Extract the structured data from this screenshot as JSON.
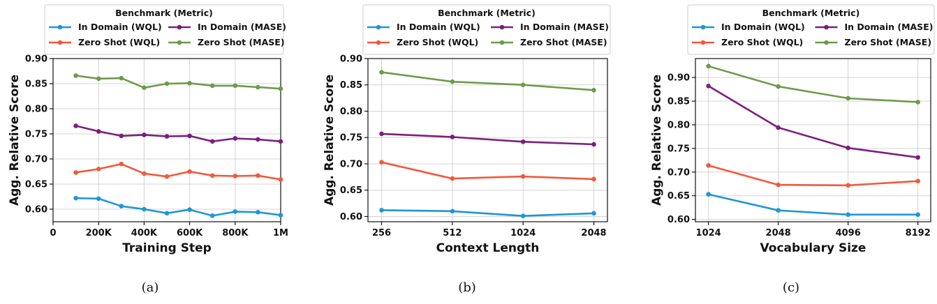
{
  "colors": {
    "in_domain_wql": "#1f96d4",
    "in_domain_mase": "#7b1f7e",
    "zero_shot_wql": "#f4583a",
    "zero_shot_mase": "#6e9a4c",
    "grid": "#d4d4d4"
  },
  "chart_data": [
    {
      "type": "line",
      "caption": "(a)",
      "xlabel": "Training Step",
      "ylabel": "Agg. Relative Score",
      "legend": {
        "title": "Benchmark (Metric)",
        "placement": "top"
      },
      "grid": true,
      "xlim": [
        0,
        1000000
      ],
      "ylim": [
        0.575,
        0.9
      ],
      "xticks": [
        0,
        200000,
        400000,
        600000,
        800000,
        1000000
      ],
      "xticklabels": [
        "0",
        "200K",
        "400K",
        "600K",
        "800K",
        "1M"
      ],
      "yticks": [
        0.6,
        0.65,
        0.7,
        0.75,
        0.8,
        0.85,
        0.9
      ],
      "yticklabels": [
        "0.60",
        "0.65",
        "0.70",
        "0.75",
        "0.80",
        "0.85",
        "0.90"
      ],
      "x": [
        100000,
        200000,
        300000,
        400000,
        500000,
        600000,
        700000,
        800000,
        900000,
        1000000
      ],
      "series": [
        {
          "name": "In Domain (WQL)",
          "color_key": "in_domain_wql",
          "values": [
            0.622,
            0.621,
            0.606,
            0.6,
            0.592,
            0.599,
            0.587,
            0.595,
            0.594,
            0.588
          ]
        },
        {
          "name": "In Domain (MASE)",
          "color_key": "in_domain_mase",
          "values": [
            0.766,
            0.755,
            0.746,
            0.748,
            0.745,
            0.746,
            0.735,
            0.741,
            0.739,
            0.735
          ]
        },
        {
          "name": "Zero Shot (WQL)",
          "color_key": "zero_shot_wql",
          "values": [
            0.673,
            0.68,
            0.69,
            0.671,
            0.665,
            0.675,
            0.667,
            0.666,
            0.667,
            0.659
          ]
        },
        {
          "name": "Zero Shot (MASE)",
          "color_key": "zero_shot_mase",
          "values": [
            0.866,
            0.86,
            0.861,
            0.842,
            0.85,
            0.851,
            0.846,
            0.846,
            0.843,
            0.84
          ]
        }
      ]
    },
    {
      "type": "line",
      "caption": "(b)",
      "xlabel": "Context Length",
      "ylabel": "Agg. Relative Score",
      "legend": {
        "title": "Benchmark (Metric)",
        "placement": "top"
      },
      "grid": true,
      "xscale": "log2",
      "xlim": [
        224,
        2340
      ],
      "ylim": [
        0.59,
        0.9
      ],
      "xticks": [
        256,
        512,
        1024,
        2048
      ],
      "xticklabels": [
        "256",
        "512",
        "1024",
        "2048"
      ],
      "yticks": [
        0.6,
        0.65,
        0.7,
        0.75,
        0.8,
        0.85,
        0.9
      ],
      "yticklabels": [
        "0.60",
        "0.65",
        "0.70",
        "0.75",
        "0.80",
        "0.85",
        "0.90"
      ],
      "x": [
        256,
        512,
        1024,
        2048
      ],
      "series": [
        {
          "name": "In Domain (WQL)",
          "color_key": "in_domain_wql",
          "values": [
            0.612,
            0.61,
            0.601,
            0.606
          ]
        },
        {
          "name": "In Domain (MASE)",
          "color_key": "in_domain_mase",
          "values": [
            0.757,
            0.751,
            0.742,
            0.737
          ]
        },
        {
          "name": "Zero Shot (WQL)",
          "color_key": "zero_shot_wql",
          "values": [
            0.703,
            0.672,
            0.676,
            0.671
          ]
        },
        {
          "name": "Zero Shot (MASE)",
          "color_key": "zero_shot_mase",
          "values": [
            0.874,
            0.856,
            0.85,
            0.84
          ]
        }
      ]
    },
    {
      "type": "line",
      "caption": "(c)",
      "xlabel": "Vocabulary Size",
      "ylabel": "Agg. Relative Score",
      "legend": {
        "title": "Benchmark (Metric)",
        "placement": "top"
      },
      "grid": true,
      "xscale": "log2",
      "xlim": [
        900,
        9300
      ],
      "ylim": [
        0.595,
        0.94
      ],
      "xticks": [
        1024,
        2048,
        4096,
        8192
      ],
      "xticklabels": [
        "1024",
        "2048",
        "4096",
        "8192"
      ],
      "yticks": [
        0.6,
        0.65,
        0.7,
        0.75,
        0.8,
        0.85,
        0.9
      ],
      "yticklabels": [
        "0.60",
        "0.65",
        "0.70",
        "0.75",
        "0.80",
        "0.85",
        "0.90"
      ],
      "x": [
        1024,
        2048,
        4096,
        8192
      ],
      "series": [
        {
          "name": "In Domain (WQL)",
          "color_key": "in_domain_wql",
          "values": [
            0.653,
            0.619,
            0.61,
            0.61
          ]
        },
        {
          "name": "In Domain (MASE)",
          "color_key": "in_domain_mase",
          "values": [
            0.882,
            0.794,
            0.751,
            0.731
          ]
        },
        {
          "name": "Zero Shot (WQL)",
          "color_key": "zero_shot_wql",
          "values": [
            0.714,
            0.673,
            0.672,
            0.681
          ]
        },
        {
          "name": "Zero Shot (MASE)",
          "color_key": "zero_shot_mase",
          "values": [
            0.924,
            0.881,
            0.856,
            0.848
          ]
        }
      ]
    }
  ]
}
